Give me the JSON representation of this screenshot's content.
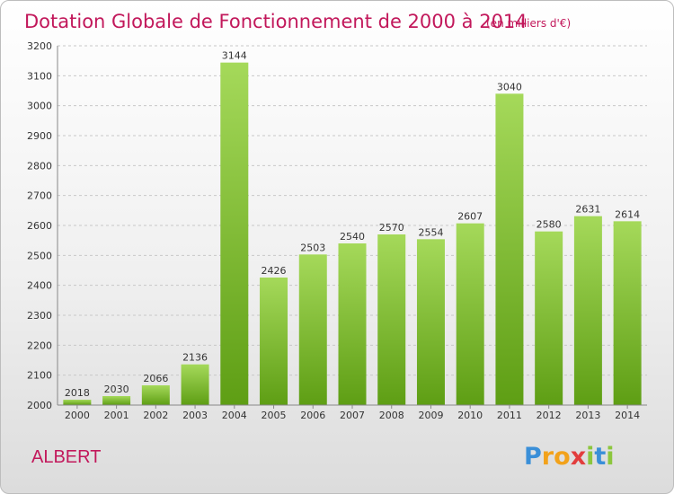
{
  "chart_data": {
    "type": "bar",
    "title": "Dotation Globale de Fonctionnement de 2000 à 2014",
    "unit": "(en milliers d'€)",
    "categories": [
      "2000",
      "2001",
      "2002",
      "2003",
      "2004",
      "2005",
      "2006",
      "2007",
      "2008",
      "2009",
      "2010",
      "2011",
      "2012",
      "2013",
      "2014"
    ],
    "values": [
      2018,
      2030,
      2066,
      2136,
      3144,
      2426,
      2503,
      2540,
      2570,
      2554,
      2607,
      3040,
      2580,
      2631,
      2614
    ],
    "ylim": [
      2000,
      3200
    ],
    "yticks": [
      2000,
      2100,
      2200,
      2300,
      2400,
      2500,
      2600,
      2700,
      2800,
      2900,
      3000,
      3100,
      3200
    ],
    "grid": true,
    "colors": {
      "bar_light": "#a5d95a",
      "bar_dark": "#5e9e14",
      "title": "#c2185b"
    }
  },
  "footer": {
    "city": "ALBERT",
    "brand": {
      "letters": [
        "P",
        "r",
        "o",
        "x",
        "i",
        "t",
        "i"
      ],
      "colors": [
        "#3a8fd8",
        "#f2a21b",
        "#f2a21b",
        "#e23d3d",
        "#8cc63e",
        "#3a8fd8",
        "#8cc63e"
      ]
    }
  }
}
